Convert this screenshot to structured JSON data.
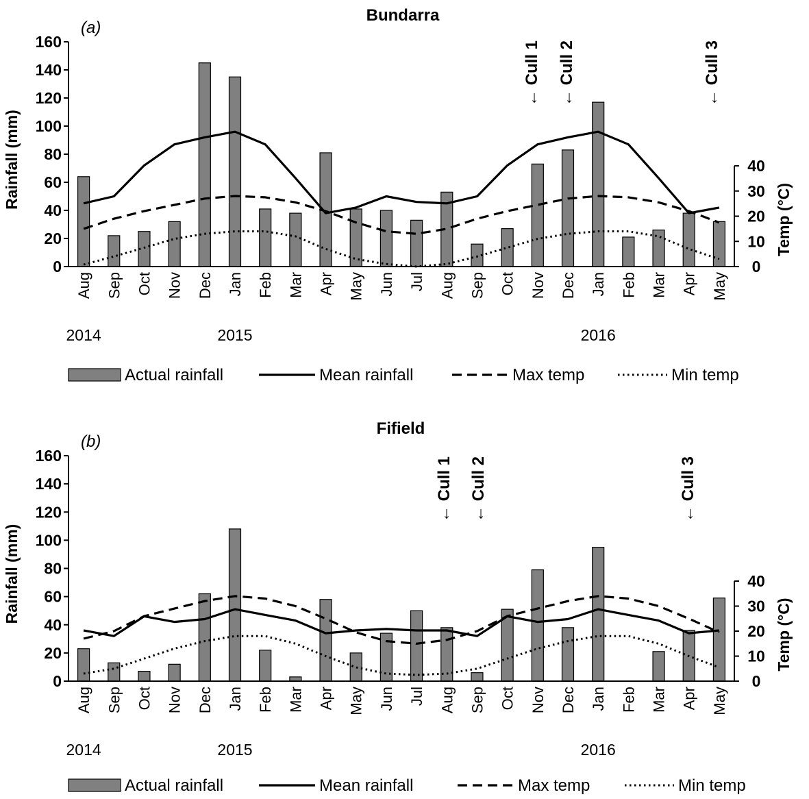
{
  "figure": {
    "legend": {
      "actual": "Actual rainfall",
      "mean": "Mean rainfall",
      "max": "Max temp",
      "min": "Min temp"
    },
    "colors": {
      "bar": "#808080",
      "line": "#000000"
    }
  },
  "chart_data": [
    {
      "type": "bar+line",
      "title": "Bundarra",
      "panel_label": "(a)",
      "ylabel": "Rainfall (mm)",
      "y2label": "Temp (°C)",
      "ylim": [
        0,
        160
      ],
      "y2lim": [
        0,
        40
      ],
      "yticks": [
        "0",
        "20",
        "40",
        "60",
        "80",
        "100",
        "120",
        "140",
        "160"
      ],
      "y2ticks": [
        "0",
        "10",
        "20",
        "30",
        "40"
      ],
      "categories": [
        "Aug",
        "Sep",
        "Oct",
        "Nov",
        "Dec",
        "Jan",
        "Feb",
        "Mar",
        "Apr",
        "May",
        "Jun",
        "Jul",
        "Aug",
        "Sep",
        "Oct",
        "Nov",
        "Dec",
        "Jan",
        "Feb",
        "Mar",
        "Apr",
        "May"
      ],
      "years": [
        {
          "label": "2014",
          "at_index": 0
        },
        {
          "label": "2015",
          "at_index": 5
        },
        {
          "label": "2016",
          "at_index": 17
        }
      ],
      "series": [
        {
          "name": "Actual rainfall",
          "kind": "bar",
          "axis": "left",
          "values": [
            64,
            22,
            25,
            32,
            145,
            135,
            41,
            38,
            81,
            41,
            40,
            33,
            53,
            16,
            27,
            73,
            83,
            117,
            21,
            26,
            38,
            32
          ]
        },
        {
          "name": "Mean rainfall",
          "kind": "line",
          "style": "solid",
          "axis": "left",
          "values": [
            45,
            50,
            72,
            87,
            92,
            96,
            87,
            63,
            38,
            42,
            50,
            46,
            45,
            50,
            72,
            87,
            92,
            96,
            87,
            63,
            38,
            42
          ]
        },
        {
          "name": "Max temp",
          "kind": "line",
          "style": "dashed",
          "axis": "right",
          "values": [
            15,
            19,
            22,
            24.5,
            27,
            28,
            27.5,
            25.5,
            22,
            17.5,
            14,
            13,
            15,
            19,
            22,
            24.5,
            27,
            28,
            27.5,
            25.5,
            22,
            17.5
          ]
        },
        {
          "name": "Min temp",
          "kind": "line",
          "style": "dotted",
          "axis": "right",
          "values": [
            0.8,
            4,
            7.5,
            11,
            13,
            14,
            14,
            12,
            7,
            3,
            1,
            0,
            1,
            4,
            7.5,
            11,
            13,
            14,
            14,
            12,
            7,
            3
          ]
        }
      ],
      "annotations": [
        {
          "text": "← Cull 1",
          "at_index": 15
        },
        {
          "text": "← Cull 2",
          "at_index": 16
        },
        {
          "text": "← Cull 3",
          "at_index": 20.7
        }
      ]
    },
    {
      "type": "bar+line",
      "title": "Fifield",
      "panel_label": "(b)",
      "ylabel": "Rainfall (mm)",
      "y2label": "Temp (°C)",
      "ylim": [
        0,
        160
      ],
      "y2lim": [
        0,
        40
      ],
      "yticks": [
        "0",
        "20",
        "40",
        "60",
        "80",
        "100",
        "120",
        "140",
        "160"
      ],
      "y2ticks": [
        "0",
        "10",
        "20",
        "30",
        "40"
      ],
      "categories": [
        "Aug",
        "Sep",
        "Oct",
        "Nov",
        "Dec",
        "Jan",
        "Feb",
        "Mar",
        "Apr",
        "May",
        "Jun",
        "Jul",
        "Aug",
        "Sep",
        "Oct",
        "Nov",
        "Dec",
        "Jan",
        "Feb",
        "Mar",
        "Apr",
        "May"
      ],
      "years": [
        {
          "label": "2014",
          "at_index": 0
        },
        {
          "label": "2015",
          "at_index": 5
        },
        {
          "label": "2016",
          "at_index": 17
        }
      ],
      "series": [
        {
          "name": "Actual rainfall",
          "kind": "bar",
          "axis": "left",
          "values": [
            23,
            13,
            7,
            12,
            62,
            108,
            22,
            3,
            58,
            20,
            34,
            50,
            38,
            6,
            51,
            79,
            38,
            95,
            0,
            21,
            36,
            59
          ]
        },
        {
          "name": "Mean rainfall",
          "kind": "line",
          "style": "solid",
          "axis": "left",
          "values": [
            36,
            32,
            46,
            42,
            44,
            51,
            47,
            43,
            34,
            36,
            37,
            36,
            36,
            32,
            46,
            42,
            44,
            51,
            47,
            43,
            34,
            36
          ]
        },
        {
          "name": "Max temp",
          "kind": "line",
          "style": "dashed",
          "axis": "right",
          "values": [
            17,
            20,
            26,
            29,
            32,
            34,
            33,
            30,
            25,
            19.5,
            16,
            15,
            16.5,
            20,
            26,
            29,
            32,
            34,
            33,
            30,
            25,
            19.5
          ]
        },
        {
          "name": "Min temp",
          "kind": "line",
          "style": "dotted",
          "axis": "right",
          "values": [
            3,
            5,
            9,
            13,
            16,
            18,
            18,
            15,
            10,
            5.5,
            3,
            2.5,
            3,
            5,
            9,
            13,
            16,
            18,
            18,
            15,
            10,
            5.5
          ]
        }
      ],
      "annotations": [
        {
          "text": "← Cull 1",
          "at_index": 12
        },
        {
          "text": "← Cull 2",
          "at_index": 13.1
        },
        {
          "text": "← Cull 3",
          "at_index": 20
        }
      ]
    }
  ]
}
